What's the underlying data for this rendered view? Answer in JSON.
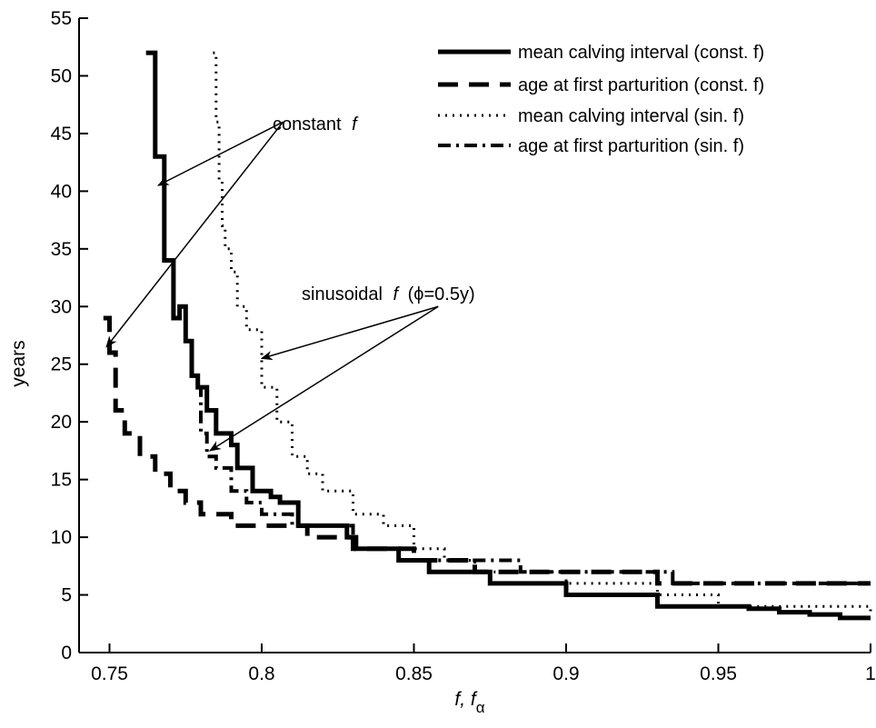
{
  "chart_data": {
    "type": "line",
    "xlabel": "f, f",
    "xlabel_subscript": "α",
    "ylabel": "years",
    "xlim": [
      0.74,
      1.0
    ],
    "ylim": [
      0,
      55
    ],
    "xticks": [
      0.75,
      0.8,
      0.85,
      0.9,
      0.95,
      1.0
    ],
    "xtick_labels": [
      "0.75",
      "0.8",
      "0.85",
      "0.9",
      "0.95",
      "1"
    ],
    "yticks": [
      0,
      5,
      10,
      15,
      20,
      25,
      30,
      35,
      40,
      45,
      50,
      55
    ],
    "ytick_labels": [
      "0",
      "5",
      "10",
      "15",
      "20",
      "25",
      "30",
      "35",
      "40",
      "45",
      "50",
      "55"
    ],
    "grid": false,
    "legend_position": "top-right",
    "series": [
      {
        "name": "mean calving interval (const. f)",
        "style": "solid",
        "x": [
          0.762,
          0.765,
          0.768,
          0.771,
          0.773,
          0.775,
          0.777,
          0.779,
          0.782,
          0.785,
          0.788,
          0.79,
          0.792,
          0.795,
          0.797,
          0.8,
          0.803,
          0.806,
          0.809,
          0.812,
          0.815,
          0.818,
          0.82,
          0.825,
          0.828,
          0.831,
          0.84,
          0.845,
          0.852,
          0.855,
          0.865,
          0.875,
          0.89,
          0.9,
          0.92,
          0.93,
          0.95,
          0.96,
          0.97,
          0.98,
          0.99,
          1.0
        ],
        "y": [
          52,
          43,
          34,
          29,
          30,
          27,
          24,
          23,
          21,
          19,
          19,
          18,
          16,
          16,
          14,
          14,
          13.5,
          13,
          13,
          11,
          11,
          11,
          11,
          11,
          10,
          9,
          9,
          8,
          8,
          7,
          7,
          6,
          6,
          5,
          5,
          4,
          4,
          3.8,
          3.5,
          3.3,
          3,
          3
        ]
      },
      {
        "name": "age at first parturition (const. f)",
        "style": "dashed",
        "x": [
          0.748,
          0.75,
          0.752,
          0.755,
          0.76,
          0.765,
          0.77,
          0.775,
          0.78,
          0.785,
          0.79,
          0.8,
          0.815,
          0.83,
          0.85,
          0.87,
          0.9,
          0.93,
          0.96,
          1.0
        ],
        "y": [
          29,
          26,
          21,
          19,
          17,
          15.5,
          14,
          13,
          12,
          12,
          11,
          11,
          10,
          9,
          8,
          7,
          7,
          6,
          6,
          6
        ]
      },
      {
        "name": "mean calving interval (sin. f)",
        "style": "dotted",
        "x": [
          0.784,
          0.785,
          0.786,
          0.787,
          0.788,
          0.79,
          0.792,
          0.795,
          0.8,
          0.805,
          0.81,
          0.815,
          0.82,
          0.83,
          0.84,
          0.85,
          0.86,
          0.87,
          0.9,
          0.93,
          0.95,
          0.97,
          1.0
        ],
        "y": [
          52,
          46,
          41,
          37,
          35,
          33,
          30,
          28,
          23,
          20,
          17,
          15.5,
          14,
          12,
          11,
          9,
          8,
          7,
          6,
          5,
          4,
          4,
          3.2
        ]
      },
      {
        "name": "age at first parturition (sin. f)",
        "style": "dashdot",
        "x": [
          0.779,
          0.78,
          0.782,
          0.785,
          0.79,
          0.795,
          0.8,
          0.81,
          0.83,
          0.85,
          0.88,
          0.885,
          0.9,
          0.93,
          0.935,
          1.0
        ],
        "y": [
          23,
          19,
          17,
          16,
          14,
          13,
          12,
          11,
          9,
          8,
          8,
          7,
          7,
          7,
          6,
          6
        ]
      }
    ],
    "annotations": [
      {
        "text": "constant",
        "italic_suffix": "f",
        "arrows_to": [
          [
            0.766,
            40.5
          ],
          [
            0.749,
            26.5
          ]
        ],
        "arrow_from": [
          0.807,
          46
        ]
      },
      {
        "text": "sinusoidal",
        "italic_part": "f",
        "suffix": "(ϕ=0.5y)",
        "arrows_to": [
          [
            0.8,
            25.5
          ],
          [
            0.783,
            17.5
          ]
        ],
        "arrow_from": [
          0.858,
          30
        ]
      }
    ]
  }
}
